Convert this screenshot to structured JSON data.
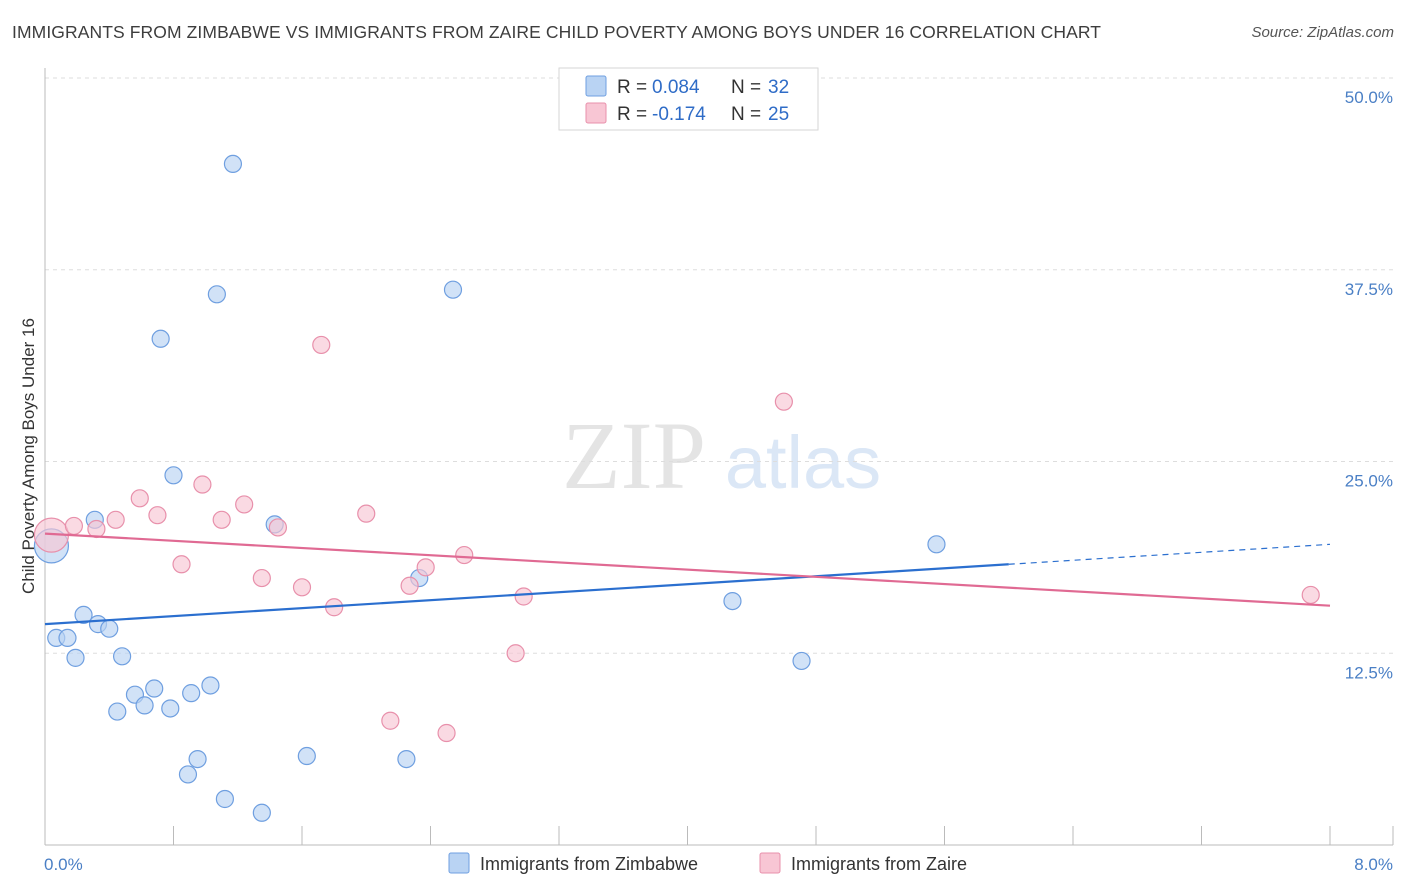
{
  "title": "IMMIGRANTS FROM ZIMBABWE VS IMMIGRANTS FROM ZAIRE CHILD POVERTY AMONG BOYS UNDER 16 CORRELATION CHART",
  "source": "Source: ZipAtlas.com",
  "watermark": {
    "zip": "ZIP",
    "atlas": "atlas"
  },
  "colors": {
    "blue_fill": "#b9d3f3",
    "blue_stroke": "#6f9fe0",
    "blue_line": "#2b6fcf",
    "pink_fill": "#f8c6d4",
    "pink_stroke": "#e890ab",
    "pink_line": "#e06a93",
    "tick_label": "#4a7fc5",
    "grid": "#dddddd"
  },
  "legend": {
    "rows": [
      {
        "r_label": "R = ",
        "r_value": "0.084",
        "n_label": "N = ",
        "n_value": "32",
        "series": "blue"
      },
      {
        "r_label": "R = ",
        "r_value": "-0.174",
        "n_label": "N = ",
        "n_value": "25",
        "series": "pink"
      }
    ]
  },
  "chart_data": {
    "type": "scatter",
    "title": "IMMIGRANTS FROM ZIMBABWE VS IMMIGRANTS FROM ZAIRE CHILD POVERTY AMONG BOYS UNDER 16 CORRELATION CHART",
    "xlabel": "",
    "ylabel": "Child Poverty Among Boys Under 16",
    "xlim": [
      0,
      8
    ],
    "ylim": [
      0,
      50
    ],
    "y_ticks": [
      12.5,
      25.0,
      37.5,
      50.0
    ],
    "y_tick_labels": [
      "12.5%",
      "25.0%",
      "37.5%",
      "50.0%"
    ],
    "x_tick_labels": [
      "0.0%",
      "8.0%"
    ],
    "grid": true,
    "legend_position": "top-center",
    "series": [
      {
        "name": "Immigrants from Zimbabwe",
        "color": "blue",
        "r": 0.084,
        "n": 32,
        "trend": {
          "x0": 0.0,
          "y0": 14.4,
          "x1": 6.0,
          "y1": 18.3,
          "dash_to_x": 8.0,
          "dash_to_y": 19.6
        },
        "points": [
          {
            "x": 0.04,
            "y": 19.5,
            "size": "large"
          },
          {
            "x": 0.07,
            "y": 13.5,
            "size": "normal"
          },
          {
            "x": 0.14,
            "y": 13.5,
            "size": "normal"
          },
          {
            "x": 0.19,
            "y": 12.2,
            "size": "normal"
          },
          {
            "x": 0.24,
            "y": 15.0,
            "size": "normal"
          },
          {
            "x": 0.31,
            "y": 21.2,
            "size": "normal"
          },
          {
            "x": 0.33,
            "y": 14.4,
            "size": "normal"
          },
          {
            "x": 0.4,
            "y": 14.1,
            "size": "normal"
          },
          {
            "x": 0.45,
            "y": 8.7,
            "size": "normal"
          },
          {
            "x": 0.48,
            "y": 12.3,
            "size": "normal"
          },
          {
            "x": 0.56,
            "y": 9.8,
            "size": "normal"
          },
          {
            "x": 0.62,
            "y": 9.1,
            "size": "normal"
          },
          {
            "x": 0.68,
            "y": 10.2,
            "size": "normal"
          },
          {
            "x": 0.72,
            "y": 33.0,
            "size": "normal"
          },
          {
            "x": 0.78,
            "y": 8.9,
            "size": "normal"
          },
          {
            "x": 0.8,
            "y": 24.1,
            "size": "normal"
          },
          {
            "x": 0.89,
            "y": 4.6,
            "size": "normal"
          },
          {
            "x": 0.91,
            "y": 9.9,
            "size": "normal"
          },
          {
            "x": 0.95,
            "y": 5.6,
            "size": "normal"
          },
          {
            "x": 1.03,
            "y": 10.4,
            "size": "normal"
          },
          {
            "x": 1.07,
            "y": 35.9,
            "size": "normal"
          },
          {
            "x": 1.12,
            "y": 3.0,
            "size": "normal"
          },
          {
            "x": 1.17,
            "y": 44.4,
            "size": "normal"
          },
          {
            "x": 1.35,
            "y": 2.1,
            "size": "normal"
          },
          {
            "x": 1.43,
            "y": 20.9,
            "size": "normal"
          },
          {
            "x": 1.63,
            "y": 5.8,
            "size": "normal"
          },
          {
            "x": 2.25,
            "y": 5.6,
            "size": "normal"
          },
          {
            "x": 2.33,
            "y": 17.4,
            "size": "normal"
          },
          {
            "x": 2.54,
            "y": 36.2,
            "size": "normal"
          },
          {
            "x": 4.28,
            "y": 15.9,
            "size": "normal"
          },
          {
            "x": 4.71,
            "y": 12.0,
            "size": "normal"
          },
          {
            "x": 5.55,
            "y": 19.6,
            "size": "normal"
          }
        ]
      },
      {
        "name": "Immigrants from Zaire",
        "color": "pink",
        "r": -0.174,
        "n": 25,
        "trend": {
          "x0": 0.0,
          "y0": 20.3,
          "x1": 8.0,
          "y1": 15.6
        },
        "points": [
          {
            "x": 0.04,
            "y": 20.2,
            "size": "large"
          },
          {
            "x": 0.18,
            "y": 20.8,
            "size": "normal"
          },
          {
            "x": 0.32,
            "y": 20.6,
            "size": "normal"
          },
          {
            "x": 0.44,
            "y": 21.2,
            "size": "normal"
          },
          {
            "x": 0.59,
            "y": 22.6,
            "size": "normal"
          },
          {
            "x": 0.7,
            "y": 21.5,
            "size": "normal"
          },
          {
            "x": 0.85,
            "y": 18.3,
            "size": "normal"
          },
          {
            "x": 0.98,
            "y": 23.5,
            "size": "normal"
          },
          {
            "x": 1.1,
            "y": 21.2,
            "size": "normal"
          },
          {
            "x": 1.24,
            "y": 22.2,
            "size": "normal"
          },
          {
            "x": 1.35,
            "y": 17.4,
            "size": "normal"
          },
          {
            "x": 1.45,
            "y": 20.7,
            "size": "normal"
          },
          {
            "x": 1.6,
            "y": 16.8,
            "size": "normal"
          },
          {
            "x": 1.72,
            "y": 32.6,
            "size": "normal"
          },
          {
            "x": 1.8,
            "y": 15.5,
            "size": "normal"
          },
          {
            "x": 2.0,
            "y": 21.6,
            "size": "normal"
          },
          {
            "x": 2.15,
            "y": 8.1,
            "size": "normal"
          },
          {
            "x": 2.27,
            "y": 16.9,
            "size": "normal"
          },
          {
            "x": 2.37,
            "y": 18.1,
            "size": "normal"
          },
          {
            "x": 2.5,
            "y": 7.3,
            "size": "normal"
          },
          {
            "x": 2.61,
            "y": 18.9,
            "size": "normal"
          },
          {
            "x": 2.93,
            "y": 12.5,
            "size": "normal"
          },
          {
            "x": 2.98,
            "y": 16.2,
            "size": "normal"
          },
          {
            "x": 4.6,
            "y": 28.9,
            "size": "normal"
          },
          {
            "x": 7.88,
            "y": 16.3,
            "size": "normal"
          }
        ]
      }
    ]
  }
}
